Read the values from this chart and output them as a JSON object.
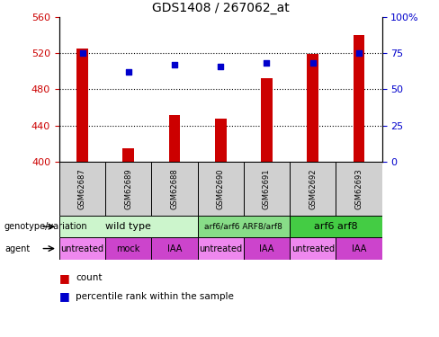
{
  "title": "GDS1408 / 267062_at",
  "samples": [
    "GSM62687",
    "GSM62689",
    "GSM62688",
    "GSM62690",
    "GSM62691",
    "GSM62692",
    "GSM62693"
  ],
  "counts": [
    525,
    415,
    452,
    448,
    492,
    519,
    540
  ],
  "percentile_ranks": [
    75,
    62,
    67,
    66,
    68,
    68,
    75
  ],
  "ylim_left": [
    400,
    560
  ],
  "ylim_right": [
    0,
    100
  ],
  "yticks_left": [
    400,
    440,
    480,
    520,
    560
  ],
  "yticks_right": [
    0,
    25,
    50,
    75,
    100
  ],
  "bar_color": "#cc0000",
  "dot_color": "#0000cc",
  "bar_bottom": 400,
  "genotype_rows": [
    {
      "label": "wild type",
      "span": [
        0,
        3
      ],
      "color": "#ccf5cc"
    },
    {
      "label": "arf6/arf6 ARF8/arf8",
      "span": [
        3,
        5
      ],
      "color": "#88dd88"
    },
    {
      "label": "arf6 arf8",
      "span": [
        5,
        7
      ],
      "color": "#44cc44"
    }
  ],
  "agent_rows": [
    {
      "label": "untreated",
      "span": [
        0,
        1
      ],
      "color": "#ee88ee"
    },
    {
      "label": "mock",
      "span": [
        1,
        2
      ],
      "color": "#cc44cc"
    },
    {
      "label": "IAA",
      "span": [
        2,
        3
      ],
      "color": "#cc44cc"
    },
    {
      "label": "untreated",
      "span": [
        3,
        4
      ],
      "color": "#ee88ee"
    },
    {
      "label": "IAA",
      "span": [
        4,
        5
      ],
      "color": "#cc44cc"
    },
    {
      "label": "untreated",
      "span": [
        5,
        6
      ],
      "color": "#ee88ee"
    },
    {
      "label": "IAA",
      "span": [
        6,
        7
      ],
      "color": "#cc44cc"
    }
  ],
  "left_label_color": "#cc0000",
  "right_label_color": "#0000cc",
  "sample_bg": "#d0d0d0"
}
